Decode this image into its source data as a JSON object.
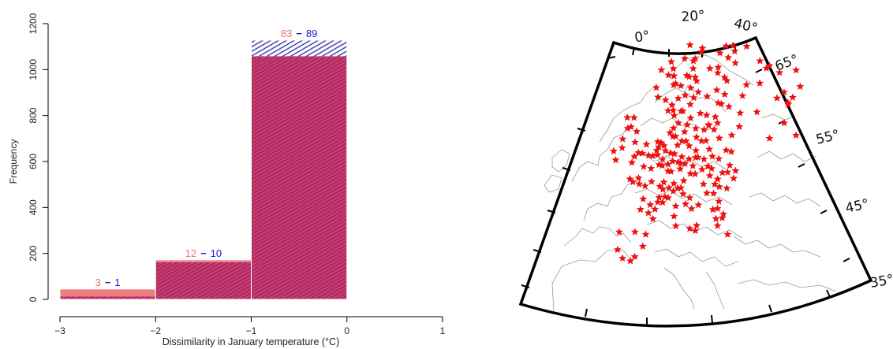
{
  "colors": {
    "red_fill": "#ef7f7f",
    "red_text": "#ee6f6f",
    "blue_text": "#1a1acc",
    "blue_hatch": "#3535a8",
    "bar_blend": "#c8376b",
    "station": "#ee1111",
    "border": "#9a9a9a",
    "frame": "#000000"
  },
  "chart_data": [
    {
      "type": "bar",
      "subtype": "overlaid histogram",
      "xlabel": "Dissimilarity in January temperature (°C)",
      "ylabel": "Frequency",
      "xlim": [
        -3,
        1
      ],
      "ylim": [
        0,
        1200
      ],
      "xticks": [
        "−3",
        "−2",
        "−1",
        "0",
        "1"
      ],
      "yticks": [
        "0",
        "200",
        "400",
        "600",
        "800",
        "1000",
        "1200"
      ],
      "bins": [
        {
          "range": [
            -3,
            -2
          ],
          "red_value": 45,
          "blue_value": 13,
          "red_label": "3",
          "dash": "−",
          "blue_label": "1"
        },
        {
          "range": [
            -2,
            -1
          ],
          "red_value": 172,
          "blue_value": 162,
          "red_label": "12",
          "dash": "−",
          "blue_label": "10"
        },
        {
          "range": [
            -1,
            0
          ],
          "red_value": 1058,
          "blue_value": 1128,
          "red_label": "83",
          "dash": "−",
          "blue_label": "89"
        }
      ],
      "grid": false,
      "legend": "none"
    },
    {
      "type": "scatter",
      "subtype": "map of station locations (Europe)",
      "marker": "star",
      "meridian_labels": [
        "0°",
        "20°",
        "40°"
      ],
      "parallel_labels": [
        "65°",
        "55°",
        "45°",
        "35°"
      ],
      "stations": [
        [
          -9.4,
          38.7
        ],
        [
          -8.6,
          41.2
        ],
        [
          -8.0,
          37.2
        ],
        [
          -5.6,
          36.4
        ],
        [
          -4.2,
          36.8
        ],
        [
          -3.7,
          40.4
        ],
        [
          -1.5,
          37.9
        ],
        [
          -0.4,
          39.5
        ],
        [
          2.1,
          41.4
        ],
        [
          0.8,
          42.5
        ],
        [
          1.5,
          43.6
        ],
        [
          -0.6,
          44.8
        ],
        [
          -1.6,
          43.4
        ],
        [
          2.9,
          42.7
        ],
        [
          3.9,
          43.6
        ],
        [
          4.8,
          45.8
        ],
        [
          5.4,
          43.3
        ],
        [
          6.2,
          44.0
        ],
        [
          5.7,
          45.2
        ],
        [
          6.1,
          46.2
        ],
        [
          7.2,
          43.7
        ],
        [
          7.6,
          45.1
        ],
        [
          8.9,
          44.4
        ],
        [
          9.2,
          45.5
        ],
        [
          10.3,
          44.6
        ],
        [
          11.3,
          44.5
        ],
        [
          12.3,
          45.4
        ],
        [
          11.9,
          43.5
        ],
        [
          12.5,
          41.9
        ],
        [
          13.9,
          42.6
        ],
        [
          14.3,
          40.9
        ],
        [
          16.5,
          41.1
        ],
        [
          15.6,
          38.2
        ],
        [
          13.4,
          38.1
        ],
        [
          15.1,
          37.5
        ],
        [
          9.1,
          39.2
        ],
        [
          8.7,
          40.7
        ],
        [
          9.4,
          42.1
        ],
        [
          4.4,
          44.2
        ],
        [
          2.3,
          46.9
        ],
        [
          0.2,
          46.6
        ],
        [
          -1.6,
          47.2
        ],
        [
          -3.5,
          47.8
        ],
        [
          -4.4,
          48.4
        ],
        [
          -1.7,
          48.1
        ],
        [
          0.1,
          49.5
        ],
        [
          2.35,
          48.85
        ],
        [
          3.1,
          50.6
        ],
        [
          4.9,
          49.0
        ],
        [
          5.9,
          48.7
        ],
        [
          7.7,
          48.6
        ],
        [
          7.6,
          47.6
        ],
        [
          8.5,
          47.4
        ],
        [
          9.9,
          49.8
        ],
        [
          11.6,
          48.1
        ],
        [
          9.2,
          48.8
        ],
        [
          10.9,
          48.4
        ],
        [
          12.1,
          49.0
        ],
        [
          13.4,
          52.5
        ],
        [
          12.4,
          51.3
        ],
        [
          13.7,
          51.05
        ],
        [
          11.0,
          50.9
        ],
        [
          10.5,
          52.3
        ],
        [
          9.7,
          52.4
        ],
        [
          8.7,
          50.1
        ],
        [
          7.1,
          50.7
        ],
        [
          6.8,
          51.5
        ],
        [
          8.8,
          53.1
        ],
        [
          10.0,
          53.6
        ],
        [
          11.6,
          54.1
        ],
        [
          14.3,
          53.4
        ],
        [
          14.6,
          50.2
        ],
        [
          16.6,
          49.2
        ],
        [
          16.4,
          48.2
        ],
        [
          15.4,
          47.1
        ],
        [
          14.3,
          48.3
        ],
        [
          13.0,
          47.8
        ],
        [
          11.4,
          47.3
        ],
        [
          17.1,
          48.1
        ],
        [
          19.0,
          47.5
        ],
        [
          18.2,
          46.1
        ],
        [
          20.1,
          46.25
        ],
        [
          21.6,
          47.5
        ],
        [
          20.8,
          48.7
        ],
        [
          19.9,
          50.1
        ],
        [
          21.0,
          52.2
        ],
        [
          18.6,
          54.4
        ],
        [
          17.0,
          51.1
        ],
        [
          16.9,
          52.4
        ],
        [
          19.5,
          51.8
        ],
        [
          22.6,
          51.3
        ],
        [
          23.2,
          53.1
        ],
        [
          20.5,
          53.8
        ],
        [
          15.5,
          54.2
        ],
        [
          14.5,
          46.1
        ],
        [
          16.0,
          45.8
        ],
        [
          18.4,
          43.9
        ],
        [
          20.5,
          44.8
        ],
        [
          21.9,
          43.3
        ],
        [
          19.3,
          42.4
        ],
        [
          21.4,
          42.0
        ],
        [
          22.9,
          43.9
        ],
        [
          23.3,
          42.7
        ],
        [
          25.6,
          42.1
        ],
        [
          27.9,
          43.2
        ],
        [
          26.1,
          44.4
        ],
        [
          24.5,
          44.6
        ],
        [
          21.2,
          45.75
        ],
        [
          23.6,
          46.8
        ],
        [
          27.6,
          47.2
        ],
        [
          26.9,
          45.3
        ],
        [
          28.6,
          44.2
        ],
        [
          22.9,
          40.6
        ],
        [
          23.7,
          38.0
        ],
        [
          21.7,
          38.2
        ],
        [
          20.9,
          39.7
        ],
        [
          22.4,
          39.6
        ],
        [
          25.1,
          35.3
        ],
        [
          24.1,
          38.5
        ],
        [
          22.1,
          37.1
        ],
        [
          24.1,
          49.8
        ],
        [
          26.0,
          47.7
        ],
        [
          30.5,
          50.45
        ],
        [
          27.6,
          53.9
        ],
        [
          31.0,
          52.4
        ],
        [
          23.8,
          52.1
        ],
        [
          24.3,
          55.0
        ],
        [
          25.3,
          54.7
        ],
        [
          24.1,
          56.95
        ],
        [
          21.0,
          56.5
        ],
        [
          26.5,
          55.9
        ],
        [
          24.7,
          59.4
        ],
        [
          26.7,
          58.4
        ],
        [
          27.4,
          57.8
        ],
        [
          30.3,
          59.95
        ],
        [
          32.0,
          54.8
        ],
        [
          33.4,
          56.2
        ],
        [
          36.2,
          51.7
        ],
        [
          37.6,
          55.75
        ],
        [
          39.7,
          47.2
        ],
        [
          40.9,
          57.8
        ],
        [
          38.0,
          59.0
        ],
        [
          34.1,
          61.8
        ],
        [
          30.3,
          61.7
        ],
        [
          43.9,
          56.3
        ],
        [
          39.9,
          57.6
        ],
        [
          44.5,
          48.7
        ],
        [
          49.1,
          55.8
        ],
        [
          50.1,
          53.2
        ],
        [
          47.6,
          52.0
        ],
        [
          45.0,
          53.2
        ],
        [
          46.0,
          51.5
        ],
        [
          42.7,
          52.7
        ],
        [
          48.0,
          46.3
        ],
        [
          46.1,
          51.2
        ],
        [
          40.6,
          64.5
        ],
        [
          33.1,
          68.9
        ],
        [
          35.0,
          64.9
        ],
        [
          25.5,
          65.0
        ],
        [
          25.7,
          62.2
        ],
        [
          24.9,
          60.2
        ],
        [
          27.7,
          62.9
        ],
        [
          28.2,
          61.1
        ],
        [
          22.3,
          60.45
        ],
        [
          29.8,
          62.6
        ],
        [
          25.0,
          64.3
        ],
        [
          28.5,
          66.0
        ],
        [
          26.7,
          67.4
        ],
        [
          27.0,
          68.7
        ],
        [
          23.7,
          68.4
        ],
        [
          25.8,
          66.5
        ],
        [
          18.9,
          69.65
        ],
        [
          25.8,
          71.0
        ],
        [
          23.3,
          69.95
        ],
        [
          29.9,
          69.7
        ],
        [
          20.2,
          67.85
        ],
        [
          22.1,
          65.6
        ],
        [
          20.3,
          63.8
        ],
        [
          17.3,
          62.4
        ],
        [
          14.6,
          63.2
        ],
        [
          16.5,
          64.9
        ],
        [
          18.0,
          59.3
        ],
        [
          17.6,
          59.9
        ],
        [
          16.0,
          58.6
        ],
        [
          13.2,
          55.6
        ],
        [
          11.97,
          57.7
        ],
        [
          15.6,
          56.2
        ],
        [
          14.2,
          57.8
        ],
        [
          13.0,
          59.4
        ],
        [
          15.0,
          60.6
        ],
        [
          17.1,
          61.3
        ],
        [
          18.3,
          57.6
        ],
        [
          12.6,
          55.7
        ],
        [
          10.2,
          56.2
        ],
        [
          9.9,
          57.05
        ],
        [
          8.6,
          56.4
        ],
        [
          10.4,
          55.4
        ],
        [
          10.75,
          59.9
        ],
        [
          10.4,
          63.4
        ],
        [
          14.4,
          67.3
        ],
        [
          5.3,
          60.4
        ],
        [
          5.7,
          58.9
        ],
        [
          8.0,
          58.1
        ],
        [
          7.2,
          62.7
        ],
        [
          11.0,
          61.2
        ],
        [
          9.3,
          61.6
        ],
        [
          11.4,
          60.0
        ],
        [
          10.9,
          62.3
        ],
        [
          15.7,
          60.3
        ],
        [
          16.8,
          57.0
        ],
        [
          17.9,
          62.6
        ],
        [
          19.9,
          63.3
        ],
        [
          13.1,
          66.1
        ],
        [
          5.9,
          52.1
        ],
        [
          4.9,
          52.4
        ],
        [
          4.4,
          51.2
        ],
        [
          4.6,
          50.5
        ],
        [
          6.1,
          49.6
        ],
        [
          5.1,
          51.6
        ],
        [
          -1.3,
          51.8
        ],
        [
          -0.1,
          51.5
        ],
        [
          1.3,
          52.6
        ],
        [
          -2.2,
          53.5
        ],
        [
          -1.5,
          55.0
        ],
        [
          -3.2,
          55.95
        ],
        [
          -4.25,
          55.9
        ],
        [
          -2.1,
          57.15
        ],
        [
          -4.2,
          57.5
        ],
        [
          -3.5,
          50.7
        ],
        [
          -2.6,
          51.45
        ],
        [
          -6.3,
          53.35
        ],
        [
          -8.5,
          51.9
        ],
        [
          -9.0,
          53.3
        ],
        [
          -6.0,
          54.6
        ],
        [
          1.8,
          50.9
        ],
        [
          21.0,
          52.3
        ],
        [
          18.5,
          50.3
        ],
        [
          28.0,
          49.6
        ]
      ]
    }
  ]
}
